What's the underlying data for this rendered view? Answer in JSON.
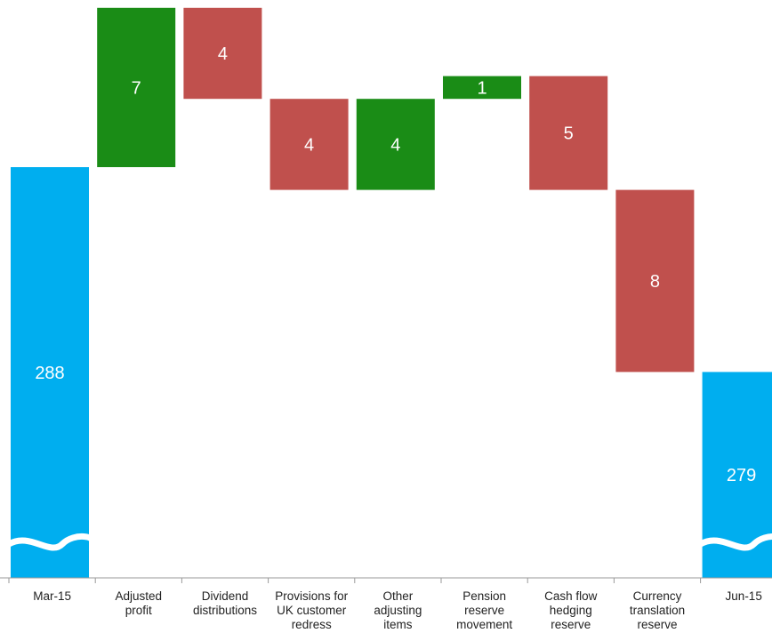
{
  "chart_data": {
    "type": "bar",
    "subtype": "waterfall",
    "title": "",
    "xlabel": "",
    "ylabel": "",
    "grid": false,
    "axis_break": true,
    "y_axis_shown": false,
    "categories": [
      [
        "Mar-15"
      ],
      [
        "Adjusted",
        "profit"
      ],
      [
        "Dividend",
        "distributions"
      ],
      [
        "Provisions for",
        "UK customer",
        "redress"
      ],
      [
        "Other",
        "adjusting",
        "items"
      ],
      [
        "Pension",
        "reserve",
        "movement"
      ],
      [
        "Cash flow",
        "hedging",
        "reserve"
      ],
      [
        "Currency",
        "translation",
        "reserve"
      ],
      [
        "Jun-15"
      ]
    ],
    "steps": [
      {
        "kind": "total",
        "value": 288,
        "label": "288"
      },
      {
        "kind": "increase",
        "value": 7,
        "label": "7"
      },
      {
        "kind": "decrease",
        "value": 4,
        "label": "4"
      },
      {
        "kind": "decrease",
        "value": 4,
        "label": "4"
      },
      {
        "kind": "increase",
        "value": 4,
        "label": "4"
      },
      {
        "kind": "increase",
        "value": 1,
        "label": "1"
      },
      {
        "kind": "decrease",
        "value": 5,
        "label": "5"
      },
      {
        "kind": "decrease",
        "value": 8,
        "label": "8"
      },
      {
        "kind": "total",
        "value": 279,
        "label": "279"
      }
    ],
    "colors": {
      "total": "#00aeef",
      "increase": "#1a8c16",
      "decrease": "#c0504d"
    }
  }
}
